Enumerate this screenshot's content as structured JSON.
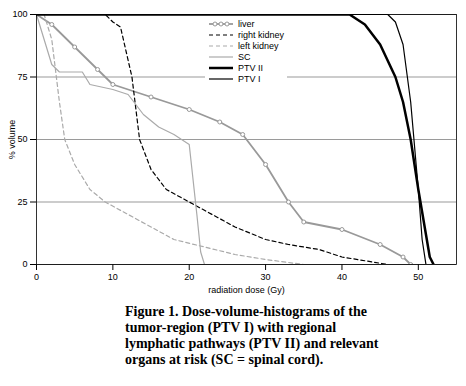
{
  "chart_data": {
    "type": "line",
    "caption": "Figure 1. Dose-volume-histograms of the tumor-region (PTV I) with regional lymphatic pathways (PTV II) and relevant organs at risk (SC = spinal cord).",
    "x_label": "radiation dose (Gy)",
    "y_label": "% volume",
    "xlim": [
      0,
      55
    ],
    "xticks": [
      0,
      10,
      20,
      30,
      40,
      50
    ],
    "ylim": [
      0,
      100
    ],
    "yticks": [
      0,
      25,
      50,
      75,
      100
    ],
    "grid": true,
    "legend": "top",
    "series": [
      {
        "name": "liver",
        "color": "#999999",
        "line_style": "solid",
        "marker": "circle",
        "x": [
          0,
          2,
          5,
          8,
          10,
          15,
          20,
          24,
          27,
          30,
          33,
          35,
          40,
          45,
          48,
          49
        ],
        "values": [
          100,
          96,
          87,
          78,
          72,
          67,
          62,
          57,
          52,
          40,
          25,
          17,
          14,
          8,
          3,
          0
        ]
      },
      {
        "name": "right kidney",
        "color": "#000000",
        "line_style": "dashed",
        "x": [
          0,
          9,
          10,
          11,
          12.5,
          13.5,
          15,
          17,
          20,
          23,
          26,
          30,
          33,
          37,
          40,
          44,
          46
        ],
        "values": [
          100,
          100,
          97,
          95,
          75,
          50,
          38,
          30,
          25,
          20,
          15,
          10,
          8,
          6,
          3,
          1,
          0
        ]
      },
      {
        "name": "left kidney",
        "color": "#aaaaaa",
        "line_style": "dashed",
        "x": [
          0,
          1,
          2,
          3,
          3.7,
          5,
          7,
          9,
          12,
          15,
          18,
          22,
          26,
          30,
          35
        ],
        "values": [
          100,
          100,
          90,
          65,
          50,
          40,
          30,
          25,
          20,
          15,
          10,
          7,
          4,
          2,
          0
        ]
      },
      {
        "name": "SC",
        "color": "#aaaaaa",
        "line_style": "solid",
        "x": [
          0,
          1,
          2,
          3,
          6,
          7,
          10,
          12,
          14,
          16,
          18,
          19,
          20,
          21,
          21.5,
          22
        ],
        "values": [
          100,
          90,
          80,
          77,
          77,
          72,
          70,
          68,
          60,
          55,
          52,
          50,
          48,
          20,
          5,
          0
        ]
      },
      {
        "name": "PTV II",
        "color": "#000000",
        "line_style": "thick",
        "x": [
          0,
          41,
          43,
          45,
          47,
          48,
          49,
          50,
          51,
          51.5,
          52
        ],
        "values": [
          100,
          100,
          96,
          88,
          75,
          65,
          50,
          30,
          12,
          3,
          0
        ]
      },
      {
        "name": "PTV I",
        "color": "#000000",
        "line_style": "solid",
        "x": [
          0,
          46,
          47,
          48,
          49,
          50,
          50.5,
          51
        ],
        "values": [
          100,
          100,
          97,
          88,
          65,
          30,
          10,
          0
        ]
      }
    ]
  }
}
